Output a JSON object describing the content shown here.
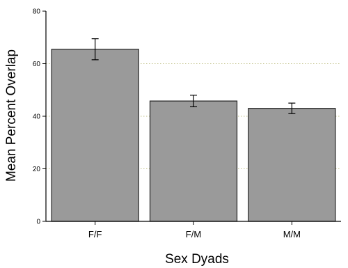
{
  "chart_data": {
    "type": "bar",
    "title": "",
    "xlabel": "Sex Dyads",
    "ylabel": "Mean Percent Overlap",
    "categories": [
      "F/F",
      "F/M",
      "M/M"
    ],
    "values": [
      65.5,
      45.8,
      43.0
    ],
    "errors": [
      4.0,
      2.2,
      2.0
    ],
    "ylim": [
      0,
      80
    ],
    "yticks": [
      0,
      20,
      40,
      60,
      80
    ],
    "ytick_labels": [
      "0",
      "20",
      "40",
      "60",
      "80"
    ],
    "grid": "horizontal dotted at 20, 40, 60",
    "bar_color": "#9a9a9a",
    "bar_edge_color": "#222222",
    "grid_color": "#c2c28a",
    "legend": "none"
  }
}
